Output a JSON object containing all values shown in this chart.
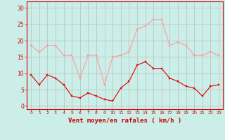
{
  "hours": [
    0,
    1,
    2,
    3,
    4,
    5,
    6,
    7,
    8,
    9,
    10,
    11,
    12,
    13,
    14,
    15,
    16,
    17,
    18,
    19,
    20,
    21,
    22,
    23
  ],
  "mean_wind": [
    9.5,
    6.5,
    9.5,
    8.5,
    6.5,
    3.0,
    2.5,
    4.0,
    3.0,
    2.0,
    1.5,
    5.5,
    7.5,
    12.5,
    13.5,
    11.5,
    11.5,
    8.5,
    7.5,
    6.0,
    5.5,
    3.0,
    6.0,
    6.5
  ],
  "gust_wind": [
    18.5,
    16.5,
    18.5,
    18.5,
    15.5,
    15.5,
    8.5,
    15.5,
    15.5,
    6.5,
    15.0,
    15.5,
    16.5,
    23.5,
    24.5,
    26.5,
    26.5,
    18.5,
    19.5,
    18.5,
    15.5,
    15.5,
    16.5,
    15.5
  ],
  "mean_color": "#dd0000",
  "gust_color": "#ff9999",
  "bg_color": "#cceee8",
  "grid_color": "#bbbbbb",
  "xlabel": "Vent moyen/en rafales ( km/h )",
  "xlabel_color": "#cc0000",
  "tick_color": "#cc0000",
  "ylabel_ticks": [
    0,
    5,
    10,
    15,
    20,
    25,
    30
  ],
  "ylim": [
    -1,
    32
  ],
  "xlim": [
    -0.5,
    23.5
  ]
}
